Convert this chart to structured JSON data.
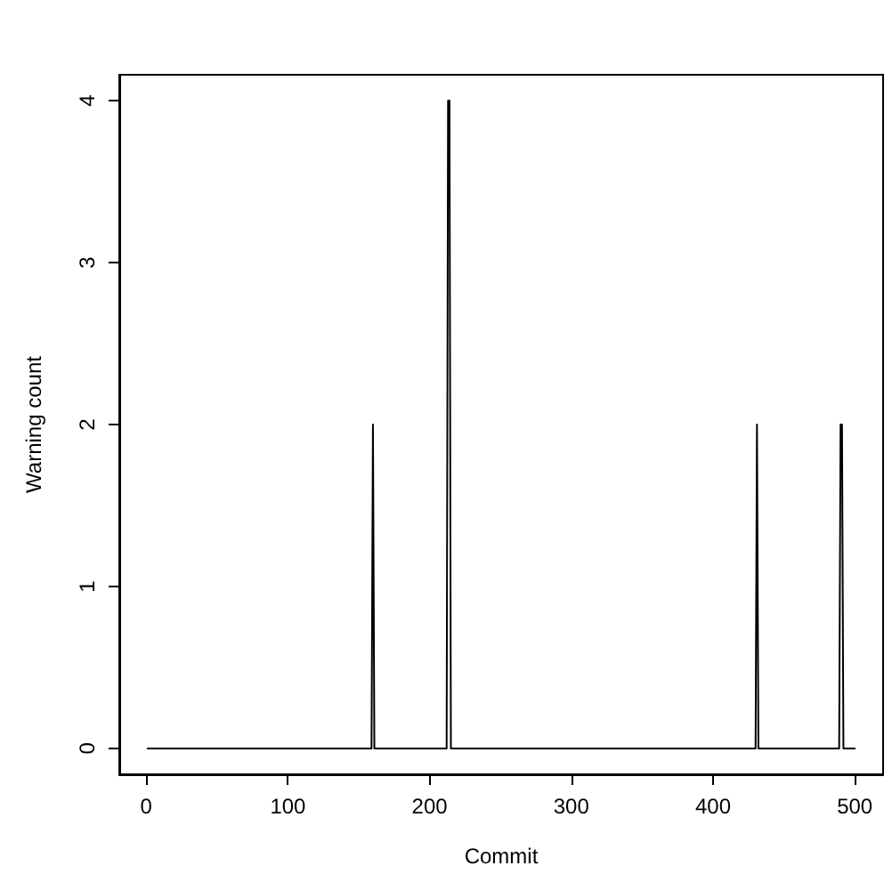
{
  "chart_data": {
    "type": "line",
    "xlabel": "Commit",
    "ylabel": "Warning count",
    "x": [
      1,
      159,
      160,
      161,
      212,
      213,
      214,
      215,
      430,
      431,
      432,
      489,
      490,
      491,
      492,
      500
    ],
    "values": [
      0,
      0,
      2,
      0,
      0,
      4,
      4,
      0,
      0,
      2,
      0,
      0,
      2,
      2,
      0,
      0
    ],
    "color": "#000000",
    "marker": "none",
    "line_style": "solid",
    "xlim": [
      -19,
      520
    ],
    "xticks": [
      0,
      100,
      200,
      300,
      400,
      500
    ],
    "ylim": [
      -0.16,
      4.16
    ],
    "yticks": [
      0,
      1,
      2,
      3,
      4
    ],
    "grid": false
  }
}
